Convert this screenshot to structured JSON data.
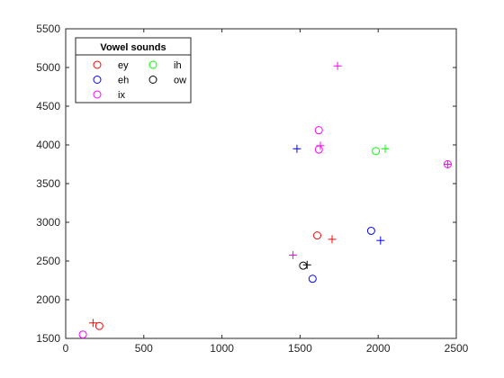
{
  "chart_data": {
    "type": "scatter",
    "title": "",
    "xlabel": "",
    "ylabel": "",
    "xlim": [
      0,
      2500
    ],
    "ylim": [
      1500,
      5500
    ],
    "xticks": [
      0,
      500,
      1000,
      1500,
      2000,
      2500
    ],
    "yticks": [
      1500,
      2000,
      2500,
      3000,
      3500,
      4000,
      4500,
      5000,
      5500
    ],
    "grid": false,
    "legend": {
      "title": "Vowel sounds",
      "placement": "top-left",
      "columns": 2,
      "entries": [
        "ey",
        "ih",
        "eh",
        "ow",
        "ix"
      ]
    },
    "series": [
      {
        "name": "ey",
        "color": "#ff0000",
        "circles": [
          [
            215,
            1660
          ],
          [
            1610,
            2830
          ]
        ],
        "crosses": [
          [
            175,
            1700
          ],
          [
            1705,
            2780
          ]
        ]
      },
      {
        "name": "eh",
        "color": "#0000ff",
        "circles": [
          [
            1580,
            2270
          ],
          [
            1955,
            2890
          ]
        ],
        "crosses": [
          [
            1480,
            3950
          ],
          [
            2015,
            2765
          ]
        ]
      },
      {
        "name": "ix",
        "color": "#ff00ff",
        "circles": [
          [
            110,
            1550
          ],
          [
            1620,
            4190
          ],
          [
            1620,
            3940
          ],
          [
            2445,
            3750
          ]
        ],
        "crosses": [
          [
            1740,
            5020
          ],
          [
            1630,
            3990
          ],
          [
            1455,
            2575
          ],
          [
            2445,
            3750
          ]
        ]
      },
      {
        "name": "ih",
        "color": "#00ff00",
        "circles": [
          [
            1985,
            3920
          ]
        ],
        "crosses": [
          [
            2045,
            3950
          ]
        ]
      },
      {
        "name": "ow",
        "color": "#000000",
        "circles": [
          [
            1520,
            2440
          ]
        ],
        "crosses": [
          [
            1545,
            2450
          ]
        ]
      }
    ]
  }
}
